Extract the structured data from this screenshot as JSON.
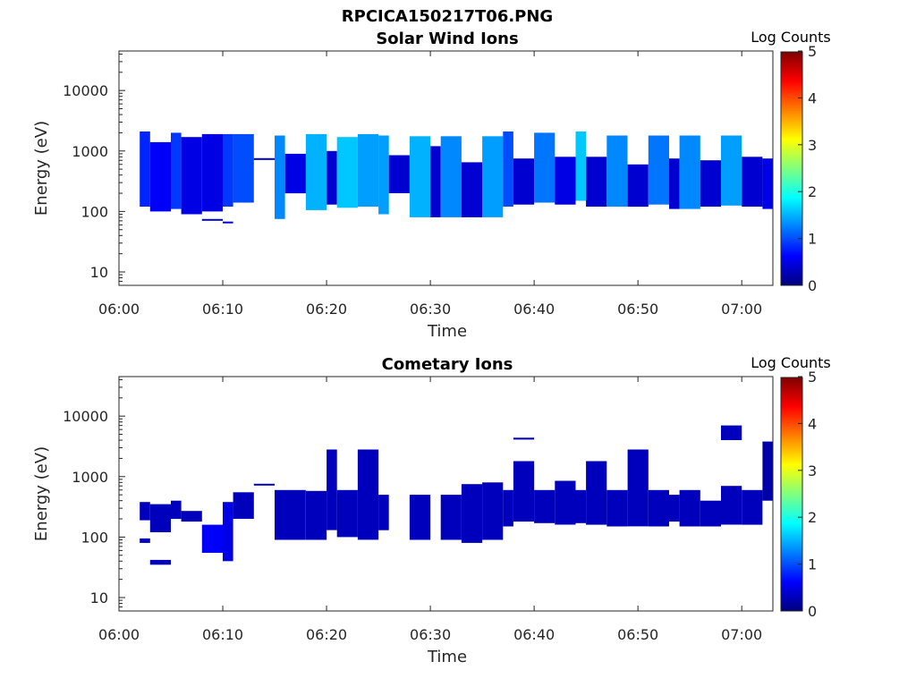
{
  "figure_title": "RPCICA150217T06.PNG",
  "colormap": [
    "#00007f",
    "#0000ff",
    "#007fff",
    "#00ffff",
    "#7fff7f",
    "#ffff00",
    "#ff7f00",
    "#ff0000",
    "#7f0000"
  ],
  "chart_data": [
    {
      "type": "heatmap",
      "title": "Solar Wind Ions",
      "xlabel": "Time",
      "ylabel": "Energy (eV)",
      "xlim": [
        "06:00",
        "07:03"
      ],
      "ylim": [
        6,
        45000
      ],
      "yscale": "log",
      "xticks": [
        "06:00",
        "06:10",
        "06:20",
        "06:30",
        "06:40",
        "06:50",
        "07:00"
      ],
      "yticks": [
        10,
        100,
        1000,
        10000
      ],
      "ytick_labels": [
        "10",
        "100",
        "1000",
        "10000"
      ],
      "colorbar": {
        "label": "Log Counts",
        "range": [
          0,
          5
        ],
        "ticks": [
          "0",
          "1",
          "2",
          "3",
          "4",
          "5"
        ]
      },
      "cells": [
        {
          "t0": "06:02",
          "t1": "06:03",
          "e_low": 120,
          "e_high": 2100,
          "log_counts": 0.8
        },
        {
          "t0": "06:03",
          "t1": "06:05",
          "e_low": 100,
          "e_high": 1400,
          "log_counts": 0.6
        },
        {
          "t0": "06:05",
          "t1": "06:06",
          "e_low": 110,
          "e_high": 2000,
          "log_counts": 0.9
        },
        {
          "t0": "06:06",
          "t1": "06:08",
          "e_low": 90,
          "e_high": 1700,
          "log_counts": 0.5
        },
        {
          "t0": "06:08",
          "t1": "06:10",
          "e_low": 100,
          "e_high": 1900,
          "log_counts": 0.5
        },
        {
          "t0": "06:08",
          "t1": "06:10",
          "e_low": 70,
          "e_high": 75,
          "log_counts": 0.4
        },
        {
          "t0": "06:10",
          "t1": "06:11",
          "e_low": 120,
          "e_high": 1900,
          "log_counts": 0.9
        },
        {
          "t0": "06:10",
          "t1": "06:11",
          "e_low": 64,
          "e_high": 68,
          "log_counts": 0.4
        },
        {
          "t0": "06:11",
          "t1": "06:13",
          "e_low": 140,
          "e_high": 1900,
          "log_counts": 1.0
        },
        {
          "t0": "06:13",
          "t1": "06:15",
          "e_low": 720,
          "e_high": 760,
          "log_counts": 0.3
        },
        {
          "t0": "06:15",
          "t1": "06:16",
          "e_low": 75,
          "e_high": 1800,
          "log_counts": 1.3
        },
        {
          "t0": "06:16",
          "t1": "06:18",
          "e_low": 200,
          "e_high": 900,
          "log_counts": 0.5
        },
        {
          "t0": "06:18",
          "t1": "06:20",
          "e_low": 105,
          "e_high": 1900,
          "log_counts": 1.5
        },
        {
          "t0": "06:20",
          "t1": "06:21",
          "e_low": 130,
          "e_high": 1000,
          "log_counts": 0.4
        },
        {
          "t0": "06:21",
          "t1": "06:23",
          "e_low": 115,
          "e_high": 1700,
          "log_counts": 1.6
        },
        {
          "t0": "06:23",
          "t1": "06:25",
          "e_low": 120,
          "e_high": 1900,
          "log_counts": 1.4
        },
        {
          "t0": "06:25",
          "t1": "06:26",
          "e_low": 90,
          "e_high": 1800,
          "log_counts": 1.4
        },
        {
          "t0": "06:26",
          "t1": "06:28",
          "e_low": 200,
          "e_high": 850,
          "log_counts": 0.4
        },
        {
          "t0": "06:28",
          "t1": "06:30",
          "e_low": 80,
          "e_high": 1750,
          "log_counts": 1.5
        },
        {
          "t0": "06:30",
          "t1": "06:31",
          "e_low": 80,
          "e_high": 1200,
          "log_counts": 0.4
        },
        {
          "t0": "06:31",
          "t1": "06:33",
          "e_low": 80,
          "e_high": 1750,
          "log_counts": 1.3
        },
        {
          "t0": "06:33",
          "t1": "06:35",
          "e_low": 80,
          "e_high": 650,
          "log_counts": 0.4
        },
        {
          "t0": "06:35",
          "t1": "06:37",
          "e_low": 80,
          "e_high": 1750,
          "log_counts": 1.4
        },
        {
          "t0": "06:37",
          "t1": "06:38",
          "e_low": 120,
          "e_high": 2100,
          "log_counts": 1.0
        },
        {
          "t0": "06:38",
          "t1": "06:40",
          "e_low": 130,
          "e_high": 750,
          "log_counts": 0.4
        },
        {
          "t0": "06:40",
          "t1": "06:42",
          "e_low": 140,
          "e_high": 2000,
          "log_counts": 1.2
        },
        {
          "t0": "06:42",
          "t1": "06:44",
          "e_low": 130,
          "e_high": 800,
          "log_counts": 0.5
        },
        {
          "t0": "06:44",
          "t1": "06:45",
          "e_low": 150,
          "e_high": 2100,
          "log_counts": 1.6
        },
        {
          "t0": "06:45",
          "t1": "06:47",
          "e_low": 120,
          "e_high": 800,
          "log_counts": 0.4
        },
        {
          "t0": "06:47",
          "t1": "06:49",
          "e_low": 120,
          "e_high": 1800,
          "log_counts": 1.3
        },
        {
          "t0": "06:49",
          "t1": "06:51",
          "e_low": 120,
          "e_high": 600,
          "log_counts": 0.4
        },
        {
          "t0": "06:51",
          "t1": "06:53",
          "e_low": 130,
          "e_high": 1800,
          "log_counts": 1.2
        },
        {
          "t0": "06:53",
          "t1": "06:54",
          "e_low": 110,
          "e_high": 750,
          "log_counts": 0.4
        },
        {
          "t0": "06:54",
          "t1": "06:56",
          "e_low": 110,
          "e_high": 1800,
          "log_counts": 1.3
        },
        {
          "t0": "06:56",
          "t1": "06:58",
          "e_low": 120,
          "e_high": 700,
          "log_counts": 0.4
        },
        {
          "t0": "06:58",
          "t1": "07:00",
          "e_low": 125,
          "e_high": 1800,
          "log_counts": 1.4
        },
        {
          "t0": "07:00",
          "t1": "07:02",
          "e_low": 120,
          "e_high": 800,
          "log_counts": 0.4
        },
        {
          "t0": "07:02",
          "t1": "07:03",
          "e_low": 110,
          "e_high": 750,
          "log_counts": 0.5
        }
      ]
    },
    {
      "type": "heatmap",
      "title": "Cometary Ions",
      "xlabel": "Time",
      "ylabel": "Energy (eV)",
      "xlim": [
        "06:00",
        "07:03"
      ],
      "ylim": [
        6,
        45000
      ],
      "yscale": "log",
      "xticks": [
        "06:00",
        "06:10",
        "06:20",
        "06:30",
        "06:40",
        "06:50",
        "07:00"
      ],
      "yticks": [
        10,
        100,
        1000,
        10000
      ],
      "ytick_labels": [
        "10",
        "100",
        "1000",
        "10000"
      ],
      "colorbar": {
        "label": "Log Counts",
        "range": [
          0,
          5
        ],
        "ticks": [
          "0",
          "1",
          "2",
          "3",
          "4",
          "5"
        ]
      },
      "cells": [
        {
          "t0": "06:02",
          "t1": "06:03",
          "e_low": 190,
          "e_high": 380,
          "log_counts": 0.3
        },
        {
          "t0": "06:02",
          "t1": "06:03",
          "e_low": 80,
          "e_high": 95,
          "log_counts": 0.3
        },
        {
          "t0": "06:03",
          "t1": "06:05",
          "e_low": 120,
          "e_high": 350,
          "log_counts": 0.3
        },
        {
          "t0": "06:03",
          "t1": "06:05",
          "e_low": 35,
          "e_high": 42,
          "log_counts": 0.3
        },
        {
          "t0": "06:05",
          "t1": "06:06",
          "e_low": 200,
          "e_high": 400,
          "log_counts": 0.3
        },
        {
          "t0": "06:06",
          "t1": "06:08",
          "e_low": 180,
          "e_high": 270,
          "log_counts": 0.3
        },
        {
          "t0": "06:08",
          "t1": "06:10",
          "e_low": 55,
          "e_high": 160,
          "log_counts": 0.6
        },
        {
          "t0": "06:10",
          "t1": "06:11",
          "e_low": 40,
          "e_high": 380,
          "log_counts": 0.5
        },
        {
          "t0": "06:11",
          "t1": "06:13",
          "e_low": 200,
          "e_high": 550,
          "log_counts": 0.3
        },
        {
          "t0": "06:13",
          "t1": "06:15",
          "e_low": 720,
          "e_high": 760,
          "log_counts": 0.3
        },
        {
          "t0": "06:15",
          "t1": "06:18",
          "e_low": 90,
          "e_high": 600,
          "log_counts": 0.3
        },
        {
          "t0": "06:18",
          "t1": "06:20",
          "e_low": 90,
          "e_high": 580,
          "log_counts": 0.3
        },
        {
          "t0": "06:20",
          "t1": "06:21",
          "e_low": 130,
          "e_high": 2800,
          "log_counts": 0.3
        },
        {
          "t0": "06:21",
          "t1": "06:23",
          "e_low": 100,
          "e_high": 600,
          "log_counts": 0.3
        },
        {
          "t0": "06:23",
          "t1": "06:25",
          "e_low": 90,
          "e_high": 2800,
          "log_counts": 0.3
        },
        {
          "t0": "06:25",
          "t1": "06:26",
          "e_low": 130,
          "e_high": 500,
          "log_counts": 0.3
        },
        {
          "t0": "06:28",
          "t1": "06:30",
          "e_low": 90,
          "e_high": 500,
          "log_counts": 0.3
        },
        {
          "t0": "06:31",
          "t1": "06:33",
          "e_low": 90,
          "e_high": 500,
          "log_counts": 0.3
        },
        {
          "t0": "06:33",
          "t1": "06:35",
          "e_low": 80,
          "e_high": 750,
          "log_counts": 0.3
        },
        {
          "t0": "06:35",
          "t1": "06:37",
          "e_low": 90,
          "e_high": 800,
          "log_counts": 0.3
        },
        {
          "t0": "06:37",
          "t1": "06:38",
          "e_low": 150,
          "e_high": 600,
          "log_counts": 0.3
        },
        {
          "t0": "06:38",
          "t1": "06:40",
          "e_low": 180,
          "e_high": 1800,
          "log_counts": 0.3
        },
        {
          "t0": "06:38",
          "t1": "06:40",
          "e_low": 4100,
          "e_high": 4400,
          "log_counts": 0.3
        },
        {
          "t0": "06:40",
          "t1": "06:42",
          "e_low": 170,
          "e_high": 600,
          "log_counts": 0.3
        },
        {
          "t0": "06:42",
          "t1": "06:44",
          "e_low": 160,
          "e_high": 850,
          "log_counts": 0.3
        },
        {
          "t0": "06:44",
          "t1": "06:45",
          "e_low": 170,
          "e_high": 600,
          "log_counts": 0.3
        },
        {
          "t0": "06:45",
          "t1": "06:47",
          "e_low": 160,
          "e_high": 1800,
          "log_counts": 0.3
        },
        {
          "t0": "06:47",
          "t1": "06:49",
          "e_low": 150,
          "e_high": 600,
          "log_counts": 0.3
        },
        {
          "t0": "06:49",
          "t1": "06:51",
          "e_low": 150,
          "e_high": 2800,
          "log_counts": 0.3
        },
        {
          "t0": "06:51",
          "t1": "06:53",
          "e_low": 150,
          "e_high": 600,
          "log_counts": 0.3
        },
        {
          "t0": "06:53",
          "t1": "06:54",
          "e_low": 180,
          "e_high": 500,
          "log_counts": 0.3
        },
        {
          "t0": "06:54",
          "t1": "06:56",
          "e_low": 150,
          "e_high": 600,
          "log_counts": 0.3
        },
        {
          "t0": "06:56",
          "t1": "06:58",
          "e_low": 150,
          "e_high": 400,
          "log_counts": 0.3
        },
        {
          "t0": "06:58",
          "t1": "07:00",
          "e_low": 160,
          "e_high": 700,
          "log_counts": 0.3
        },
        {
          "t0": "06:58",
          "t1": "07:00",
          "e_low": 4000,
          "e_high": 7000,
          "log_counts": 0.3
        },
        {
          "t0": "07:00",
          "t1": "07:02",
          "e_low": 160,
          "e_high": 600,
          "log_counts": 0.3
        },
        {
          "t0": "07:02",
          "t1": "07:03",
          "e_low": 400,
          "e_high": 3800,
          "log_counts": 0.2
        }
      ]
    }
  ]
}
